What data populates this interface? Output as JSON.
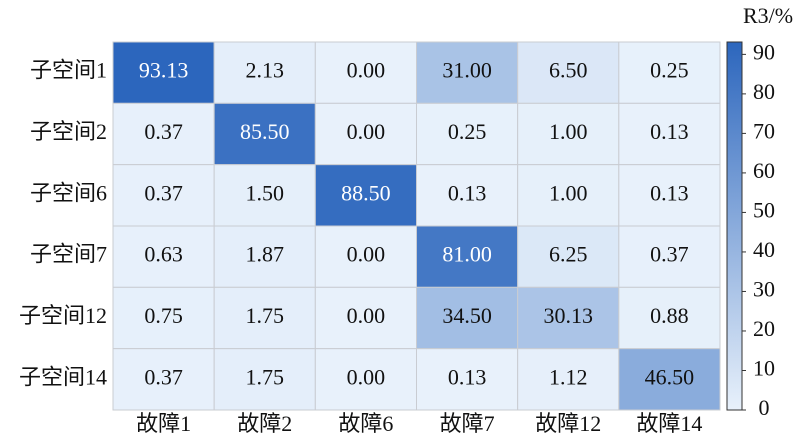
{
  "chart_data": {
    "type": "heatmap",
    "rows": [
      "子空间1",
      "子空间2",
      "子空间6",
      "子空间7",
      "子空间12",
      "子空间14"
    ],
    "columns": [
      "故障1",
      "故障2",
      "故障6",
      "故障7",
      "故障12",
      "故障14"
    ],
    "values": [
      [
        93.13,
        2.13,
        0,
        31,
        6.5,
        0.25
      ],
      [
        0.37,
        85.5,
        0,
        0.25,
        1,
        0.13
      ],
      [
        0.37,
        1.5,
        88.5,
        0.13,
        1,
        0.13
      ],
      [
        0.63,
        1.87,
        0,
        81,
        6.25,
        0.37
      ],
      [
        0.75,
        1.75,
        0,
        34.5,
        30.13,
        0.88
      ],
      [
        0.37,
        1.75,
        0,
        0.13,
        1.12,
        46.5
      ]
    ],
    "value_labels": [
      [
        "93.13",
        "2.13",
        "0.00",
        "31.00",
        "6.50",
        "0.25"
      ],
      [
        "0.37",
        "85.50",
        "0.00",
        "0.25",
        "1.00",
        "0.13"
      ],
      [
        "0.37",
        "1.50",
        "88.50",
        "0.13",
        "1.00",
        "0.13"
      ],
      [
        "0.63",
        "1.87",
        "0.00",
        "81.00",
        "6.25",
        "0.37"
      ],
      [
        "0.75",
        "1.75",
        "0.00",
        "34.50",
        "30.13",
        "0.88"
      ],
      [
        "0.37",
        "1.75",
        "0.00",
        "0.13",
        "1.12",
        "46.50"
      ]
    ],
    "colorbar_label": "R3/%",
    "zlim": [
      0,
      93.13
    ],
    "zticks": [
      0,
      10,
      20,
      30,
      40,
      50,
      60,
      70,
      80,
      90
    ],
    "colormap": [
      "#e8f1fb",
      "#2c66bd"
    ]
  }
}
